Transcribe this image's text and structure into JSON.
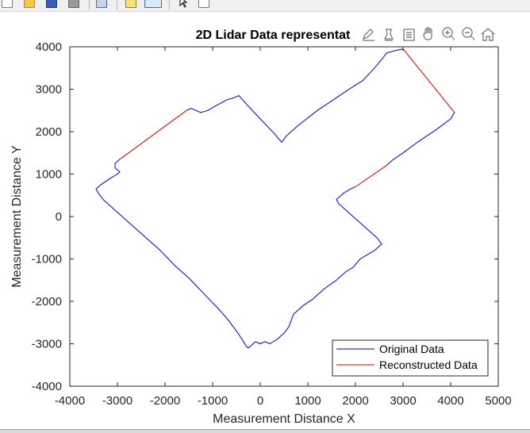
{
  "toolbar": {
    "buttons": [
      "new-figure-icon",
      "open-file-icon",
      "save-icon",
      "print-icon",
      "link-icon",
      "insert-colorbar-icon",
      "insert-legend-icon",
      "edit-plot-icon",
      "property-inspector-icon"
    ]
  },
  "axes_toolbar": {
    "icons": [
      "brush-icon",
      "data-cursor-icon",
      "link-plot-icon",
      "pan-icon",
      "zoom-in-icon",
      "zoom-out-icon",
      "home-icon"
    ]
  },
  "chart_data": {
    "type": "line",
    "title": "2D Lidar Data representat",
    "xlabel": "Measurement Distance X",
    "ylabel": "Measurement Distance Y",
    "xlim": [
      -4000,
      5000
    ],
    "ylim": [
      -4000,
      4000
    ],
    "xticks": [
      "-4000",
      "-3000",
      "-2000",
      "-1000",
      "0",
      "1000",
      "2000",
      "3000",
      "4000",
      "5000"
    ],
    "yticks": [
      "-4000",
      "-3000",
      "-2000",
      "-1000",
      "0",
      "1000",
      "2000",
      "3000",
      "4000"
    ],
    "grid": false,
    "legend_position": "bottom-right",
    "series": [
      {
        "name": "Original Data",
        "color": "#0000cc",
        "segments": [
          [
            [
              -2950,
              1350
            ],
            [
              -3050,
              1250
            ],
            [
              -3050,
              1150
            ],
            [
              -2950,
              1050
            ],
            [
              -3000,
              1000
            ],
            [
              -3150,
              900
            ],
            [
              -3350,
              750
            ],
            [
              -3450,
              650
            ],
            [
              -3400,
              550
            ],
            [
              -3300,
              400
            ],
            [
              -3000,
              100
            ],
            [
              -2700,
              -200
            ],
            [
              -2400,
              -500
            ],
            [
              -2100,
              -800
            ],
            [
              -1800,
              -1150
            ],
            [
              -1500,
              -1450
            ],
            [
              -1200,
              -1800
            ],
            [
              -900,
              -2150
            ],
            [
              -700,
              -2400
            ],
            [
              -500,
              -2700
            ],
            [
              -350,
              -2950
            ],
            [
              -300,
              -3050
            ],
            [
              -250,
              -3100
            ],
            [
              -200,
              -3050
            ],
            [
              -100,
              -2950
            ],
            [
              0,
              -3000
            ],
            [
              100,
              -2950
            ],
            [
              200,
              -3000
            ],
            [
              350,
              -2900
            ],
            [
              500,
              -2750
            ],
            [
              600,
              -2600
            ],
            [
              650,
              -2450
            ],
            [
              700,
              -2300
            ],
            [
              900,
              -2100
            ],
            [
              1100,
              -1950
            ],
            [
              1350,
              -1700
            ],
            [
              1600,
              -1500
            ],
            [
              1800,
              -1300
            ],
            [
              1950,
              -1200
            ],
            [
              2100,
              -1000
            ],
            [
              2250,
              -900
            ],
            [
              2400,
              -800
            ],
            [
              2500,
              -700
            ],
            [
              2550,
              -650
            ],
            [
              2450,
              -500
            ],
            [
              2300,
              -350
            ],
            [
              2150,
              -200
            ],
            [
              2000,
              -50
            ],
            [
              1850,
              100
            ],
            [
              1750,
              200
            ],
            [
              1650,
              300
            ],
            [
              1600,
              400
            ],
            [
              1650,
              450
            ],
            [
              1750,
              550
            ],
            [
              1900,
              650
            ],
            [
              2000,
              700
            ]
          ],
          [
            [
              2650,
              1200
            ],
            [
              2800,
              1350
            ],
            [
              3000,
              1500
            ],
            [
              3300,
              1750
            ],
            [
              3700,
              2050
            ],
            [
              4000,
              2300
            ],
            [
              4080,
              2450
            ]
          ],
          [
            [
              3000,
              3950
            ],
            [
              2800,
              3900
            ],
            [
              2650,
              3850
            ],
            [
              2550,
              3700
            ],
            [
              2400,
              3500
            ],
            [
              2150,
              3200
            ],
            [
              2000,
              3100
            ],
            [
              1600,
              2800
            ],
            [
              1200,
              2500
            ],
            [
              800,
              2150
            ],
            [
              550,
              1900
            ],
            [
              450,
              1750
            ],
            [
              300,
              1950
            ],
            [
              0,
              2300
            ],
            [
              -250,
              2600
            ],
            [
              -450,
              2850
            ],
            [
              -550,
              2800
            ],
            [
              -700,
              2750
            ],
            [
              -950,
              2600
            ],
            [
              -1100,
              2500
            ],
            [
              -1250,
              2450
            ],
            [
              -1350,
              2500
            ],
            [
              -1450,
              2550
            ],
            [
              -1550,
              2500
            ]
          ]
        ]
      },
      {
        "name": "Reconstructed Data",
        "color": "#dd0000",
        "segments": [
          [
            [
              -1550,
              2500
            ],
            [
              -2950,
              1350
            ]
          ],
          [
            [
              2000,
              700
            ],
            [
              2650,
              1200
            ]
          ],
          [
            [
              4080,
              2450
            ],
            [
              3000,
              3950
            ]
          ]
        ]
      }
    ]
  }
}
